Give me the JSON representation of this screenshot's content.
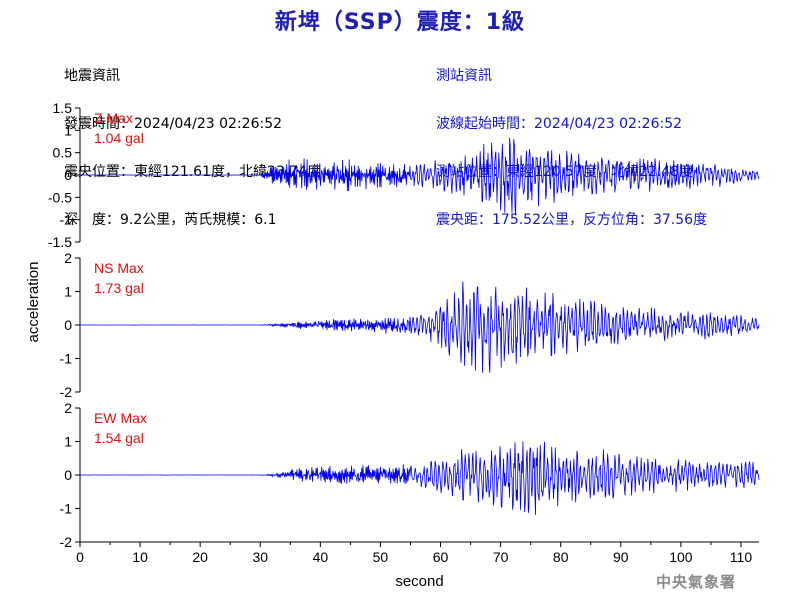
{
  "header": {
    "title": "新埤（SSP）震度：1級"
  },
  "quake_info": {
    "heading": "地震資訊",
    "origin_time": "發震時間：2024/04/23 02:26:52",
    "epicenter": "震央位置：東經121.61度，北緯23.74度",
    "depth_magnitude": "深　度：9.2公里，芮氏規模：6.1"
  },
  "station_info": {
    "heading": "測站資訊",
    "wave_start": "波線起始時間：2024/04/23 02:26:52",
    "station_location": "測站位置：東經120.57度，北緯22.48度",
    "distance_azimuth": "震央距：175.52公里，反方位角：37.56度"
  },
  "credit": "中央氣象署",
  "colors": {
    "title": "#1f1fb4",
    "station_text": "#1414c8",
    "trace": "#0000ee",
    "max_label": "#dd1111"
  },
  "chart_data": {
    "type": "line",
    "xlabel": "second",
    "ylabel": "acceleration",
    "xlim": [
      0,
      113
    ],
    "xticks": [
      0,
      10,
      20,
      30,
      40,
      50,
      60,
      70,
      80,
      90,
      100,
      110
    ],
    "grid": false,
    "panels": [
      {
        "name": "Z",
        "max_label": "Z Max",
        "max_value": "1.04 gal",
        "ylim": [
          -1.5,
          1.5
        ],
        "yticks": [
          "1.5",
          "1",
          "0.5",
          "0",
          "-0.5",
          "-1",
          "-1.5"
        ],
        "tick_values": [
          1.5,
          1,
          0.5,
          0,
          -0.5,
          -1,
          -1.5
        ],
        "peak": 1.04,
        "envelope": [
          [
            0,
            0.01
          ],
          [
            30,
            0.01
          ],
          [
            31,
            0.12
          ],
          [
            33,
            0.3
          ],
          [
            36,
            0.4
          ],
          [
            40,
            0.35
          ],
          [
            45,
            0.35
          ],
          [
            50,
            0.3
          ],
          [
            55,
            0.28
          ],
          [
            58,
            0.3
          ],
          [
            62,
            0.45
          ],
          [
            65,
            0.55
          ],
          [
            68,
            0.75
          ],
          [
            71,
            1.0
          ],
          [
            74,
            0.8
          ],
          [
            78,
            0.65
          ],
          [
            82,
            0.55
          ],
          [
            86,
            0.45
          ],
          [
            90,
            0.4
          ],
          [
            95,
            0.38
          ],
          [
            100,
            0.32
          ],
          [
            105,
            0.28
          ],
          [
            110,
            0.2
          ],
          [
            113,
            0.15
          ]
        ]
      },
      {
        "name": "NS",
        "max_label": "NS Max",
        "max_value": "1.73 gal",
        "ylim": [
          -2,
          2
        ],
        "yticks": [
          "2",
          "1",
          "0",
          "-1",
          "-2"
        ],
        "tick_values": [
          2,
          1,
          0,
          -1,
          -2
        ],
        "peak": 1.73,
        "envelope": [
          [
            0,
            0.01
          ],
          [
            31,
            0.01
          ],
          [
            33,
            0.05
          ],
          [
            37,
            0.12
          ],
          [
            42,
            0.18
          ],
          [
            48,
            0.22
          ],
          [
            52,
            0.25
          ],
          [
            56,
            0.3
          ],
          [
            58,
            0.45
          ],
          [
            61,
            0.8
          ],
          [
            63,
            1.1
          ],
          [
            66,
            1.6
          ],
          [
            69,
            1.3
          ],
          [
            72,
            1.1
          ],
          [
            75,
            1.2
          ],
          [
            78,
            1.0
          ],
          [
            82,
            0.85
          ],
          [
            86,
            0.65
          ],
          [
            90,
            0.55
          ],
          [
            95,
            0.5
          ],
          [
            100,
            0.42
          ],
          [
            105,
            0.4
          ],
          [
            110,
            0.35
          ],
          [
            113,
            0.35
          ]
        ]
      },
      {
        "name": "EW",
        "max_label": "EW Max",
        "max_value": "1.54 gal",
        "ylim": [
          -2,
          2
        ],
        "yticks": [
          "2",
          "1",
          "0",
          "-1",
          "-2"
        ],
        "tick_values": [
          2,
          1,
          0,
          -1,
          -2
        ],
        "peak": 1.54,
        "envelope": [
          [
            0,
            0.01
          ],
          [
            31,
            0.01
          ],
          [
            33,
            0.08
          ],
          [
            37,
            0.22
          ],
          [
            42,
            0.28
          ],
          [
            48,
            0.3
          ],
          [
            52,
            0.3
          ],
          [
            56,
            0.35
          ],
          [
            60,
            0.55
          ],
          [
            64,
            0.85
          ],
          [
            68,
            1.0
          ],
          [
            71,
            1.2
          ],
          [
            74,
            1.5
          ],
          [
            77,
            1.1
          ],
          [
            80,
            0.9
          ],
          [
            84,
            0.8
          ],
          [
            88,
            0.75
          ],
          [
            92,
            0.65
          ],
          [
            96,
            0.55
          ],
          [
            100,
            0.5
          ],
          [
            105,
            0.45
          ],
          [
            110,
            0.42
          ],
          [
            113,
            0.4
          ]
        ]
      }
    ]
  }
}
